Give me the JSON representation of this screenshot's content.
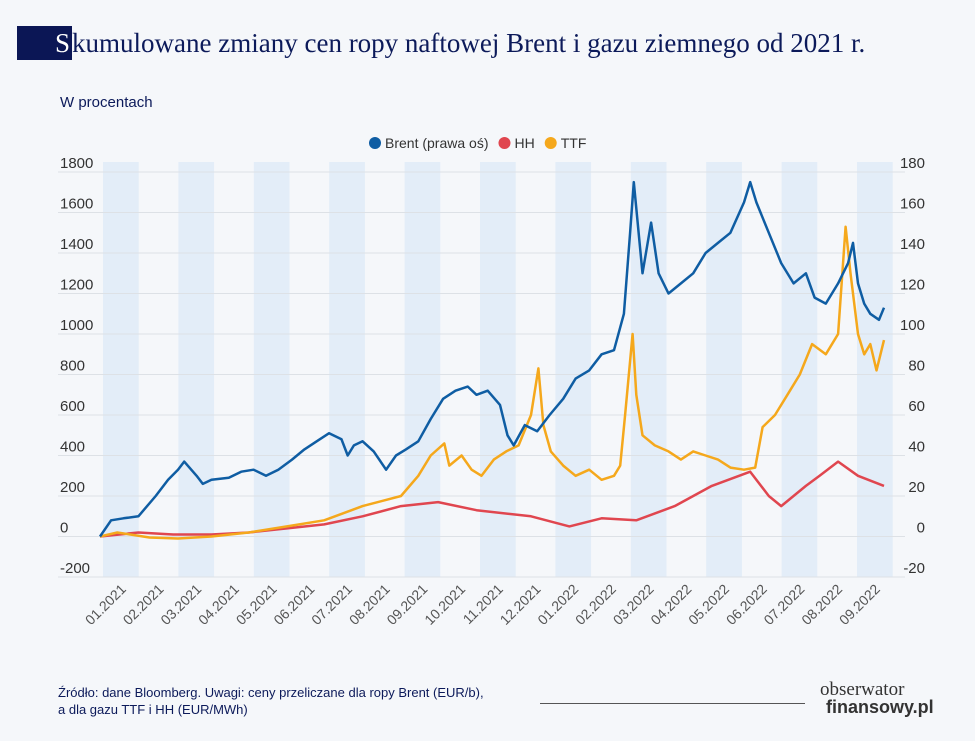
{
  "header": {
    "title_initial": "S",
    "title_rest": "kumulowane zmiany cen ropy naftowej Brent i gazu ziemnego od 2021 r.",
    "subtitle": "W procentach"
  },
  "footer": {
    "source_line1": "Źródło: dane Bloomberg. Uwagi: ceny przeliczane dla ropy Brent (EUR/b),",
    "source_line2": "a dla gazu TTF i HH (EUR/MWh)",
    "logo_line1": "obserwator",
    "logo_line2": "finansowy.pl"
  },
  "chart_data": {
    "type": "line",
    "legend_position": "top-center",
    "grid": true,
    "xlabel": "",
    "ylabel": "W procentach",
    "ylim_left": [
      -200,
      1800
    ],
    "ylim_right": [
      -20,
      180
    ],
    "left_ticks": [
      "1800",
      "1600",
      "1400",
      "1200",
      "1000",
      "800",
      "600",
      "400",
      "200",
      "0",
      "-200"
    ],
    "right_ticks": [
      "180",
      "160",
      "140",
      "120",
      "100",
      "80",
      "60",
      "40",
      "20",
      "0",
      "-20"
    ],
    "x_ticks": [
      "01.2021",
      "02.2021",
      "03.2021",
      "04.2021",
      "05.2021",
      "06.2021",
      "07.2021",
      "08.2021",
      "09.2021",
      "10.2021",
      "11.2021",
      "12.2021",
      "01.2022",
      "02.2022",
      "03.2022",
      "04.2022",
      "05.2022",
      "06.2022",
      "07.2022",
      "08.2022",
      "09.2022"
    ],
    "series": [
      {
        "name": "Brent (prawa oś)",
        "axis": "right",
        "color": "#0f5da3",
        "points": [
          [
            "2021-01-01",
            0
          ],
          [
            "2021-01-10",
            8
          ],
          [
            "2021-01-20",
            9
          ],
          [
            "2021-02-01",
            10
          ],
          [
            "2021-02-15",
            20
          ],
          [
            "2021-02-25",
            28
          ],
          [
            "2021-03-05",
            33
          ],
          [
            "2021-03-10",
            37
          ],
          [
            "2021-03-20",
            30
          ],
          [
            "2021-03-25",
            26
          ],
          [
            "2021-04-01",
            28
          ],
          [
            "2021-04-15",
            29
          ],
          [
            "2021-04-25",
            32
          ],
          [
            "2021-05-05",
            33
          ],
          [
            "2021-05-15",
            30
          ],
          [
            "2021-05-25",
            33
          ],
          [
            "2021-06-05",
            38
          ],
          [
            "2021-06-15",
            43
          ],
          [
            "2021-06-25",
            47
          ],
          [
            "2021-07-05",
            51
          ],
          [
            "2021-07-15",
            48
          ],
          [
            "2021-07-20",
            40
          ],
          [
            "2021-07-25",
            45
          ],
          [
            "2021-08-01",
            47
          ],
          [
            "2021-08-10",
            42
          ],
          [
            "2021-08-20",
            33
          ],
          [
            "2021-08-28",
            40
          ],
          [
            "2021-09-05",
            43
          ],
          [
            "2021-09-15",
            47
          ],
          [
            "2021-09-25",
            58
          ],
          [
            "2021-10-05",
            68
          ],
          [
            "2021-10-15",
            72
          ],
          [
            "2021-10-25",
            74
          ],
          [
            "2021-11-01",
            70
          ],
          [
            "2021-11-10",
            72
          ],
          [
            "2021-11-20",
            65
          ],
          [
            "2021-11-26",
            50
          ],
          [
            "2021-12-01",
            45
          ],
          [
            "2021-12-10",
            55
          ],
          [
            "2021-12-20",
            52
          ],
          [
            "2021-12-30",
            60
          ],
          [
            "2022-01-10",
            68
          ],
          [
            "2022-01-20",
            78
          ],
          [
            "2022-01-31",
            82
          ],
          [
            "2022-02-10",
            90
          ],
          [
            "2022-02-20",
            92
          ],
          [
            "2022-02-28",
            110
          ],
          [
            "2022-03-05",
            150
          ],
          [
            "2022-03-08",
            175
          ],
          [
            "2022-03-15",
            130
          ],
          [
            "2022-03-22",
            155
          ],
          [
            "2022-03-28",
            130
          ],
          [
            "2022-04-05",
            120
          ],
          [
            "2022-04-15",
            125
          ],
          [
            "2022-04-25",
            130
          ],
          [
            "2022-05-05",
            140
          ],
          [
            "2022-05-15",
            145
          ],
          [
            "2022-05-25",
            150
          ],
          [
            "2022-06-05",
            165
          ],
          [
            "2022-06-10",
            175
          ],
          [
            "2022-06-15",
            165
          ],
          [
            "2022-06-25",
            150
          ],
          [
            "2022-07-05",
            135
          ],
          [
            "2022-07-15",
            125
          ],
          [
            "2022-07-25",
            130
          ],
          [
            "2022-08-01",
            118
          ],
          [
            "2022-08-10",
            115
          ],
          [
            "2022-08-20",
            125
          ],
          [
            "2022-08-28",
            135
          ],
          [
            "2022-09-01",
            145
          ],
          [
            "2022-09-05",
            125
          ],
          [
            "2022-09-10",
            115
          ],
          [
            "2022-09-15",
            110
          ],
          [
            "2022-09-22",
            107
          ],
          [
            "2022-09-26",
            113
          ]
        ]
      },
      {
        "name": "HH",
        "axis": "left",
        "color": "#e0464f",
        "points": [
          [
            "2021-01-01",
            0
          ],
          [
            "2021-02-01",
            20
          ],
          [
            "2021-03-01",
            10
          ],
          [
            "2021-04-01",
            10
          ],
          [
            "2021-05-01",
            20
          ],
          [
            "2021-06-01",
            40
          ],
          [
            "2021-07-01",
            60
          ],
          [
            "2021-08-01",
            100
          ],
          [
            "2021-09-01",
            150
          ],
          [
            "2021-10-01",
            170
          ],
          [
            "2021-11-01",
            130
          ],
          [
            "2021-12-15",
            100
          ],
          [
            "2022-01-15",
            50
          ],
          [
            "2022-02-10",
            90
          ],
          [
            "2022-03-10",
            80
          ],
          [
            "2022-04-10",
            150
          ],
          [
            "2022-05-10",
            250
          ],
          [
            "2022-06-01",
            300
          ],
          [
            "2022-06-10",
            320
          ],
          [
            "2022-06-25",
            200
          ],
          [
            "2022-07-05",
            150
          ],
          [
            "2022-07-25",
            250
          ],
          [
            "2022-08-05",
            300
          ],
          [
            "2022-08-20",
            370
          ],
          [
            "2022-09-05",
            300
          ],
          [
            "2022-09-26",
            250
          ]
        ]
      },
      {
        "name": "TTF",
        "axis": "left",
        "color": "#f5a81c",
        "points": [
          [
            "2021-01-01",
            0
          ],
          [
            "2021-01-15",
            20
          ],
          [
            "2021-02-10",
            -5
          ],
          [
            "2021-03-05",
            -10
          ],
          [
            "2021-04-01",
            0
          ],
          [
            "2021-05-01",
            20
          ],
          [
            "2021-06-01",
            50
          ],
          [
            "2021-07-01",
            80
          ],
          [
            "2021-08-01",
            150
          ],
          [
            "2021-09-01",
            200
          ],
          [
            "2021-09-15",
            300
          ],
          [
            "2021-09-25",
            400
          ],
          [
            "2021-10-06",
            460
          ],
          [
            "2021-10-10",
            350
          ],
          [
            "2021-10-20",
            400
          ],
          [
            "2021-10-28",
            330
          ],
          [
            "2021-11-05",
            300
          ],
          [
            "2021-11-15",
            380
          ],
          [
            "2021-11-25",
            420
          ],
          [
            "2021-12-05",
            450
          ],
          [
            "2021-12-15",
            600
          ],
          [
            "2021-12-21",
            830
          ],
          [
            "2021-12-25",
            550
          ],
          [
            "2021-12-31",
            420
          ],
          [
            "2022-01-10",
            350
          ],
          [
            "2022-01-20",
            300
          ],
          [
            "2022-01-31",
            330
          ],
          [
            "2022-02-10",
            280
          ],
          [
            "2022-02-20",
            300
          ],
          [
            "2022-02-25",
            350
          ],
          [
            "2022-03-01",
            600
          ],
          [
            "2022-03-07",
            1000
          ],
          [
            "2022-03-10",
            700
          ],
          [
            "2022-03-15",
            500
          ],
          [
            "2022-03-25",
            450
          ],
          [
            "2022-04-05",
            420
          ],
          [
            "2022-04-15",
            380
          ],
          [
            "2022-04-25",
            420
          ],
          [
            "2022-05-05",
            400
          ],
          [
            "2022-05-15",
            380
          ],
          [
            "2022-05-25",
            340
          ],
          [
            "2022-06-05",
            330
          ],
          [
            "2022-06-14",
            340
          ],
          [
            "2022-06-20",
            540
          ],
          [
            "2022-06-30",
            600
          ],
          [
            "2022-07-10",
            700
          ],
          [
            "2022-07-20",
            800
          ],
          [
            "2022-07-30",
            950
          ],
          [
            "2022-08-10",
            900
          ],
          [
            "2022-08-20",
            1000
          ],
          [
            "2022-08-26",
            1530
          ],
          [
            "2022-08-30",
            1300
          ],
          [
            "2022-09-05",
            1000
          ],
          [
            "2022-09-10",
            900
          ],
          [
            "2022-09-15",
            950
          ],
          [
            "2022-09-20",
            820
          ],
          [
            "2022-09-26",
            970
          ]
        ]
      }
    ]
  }
}
